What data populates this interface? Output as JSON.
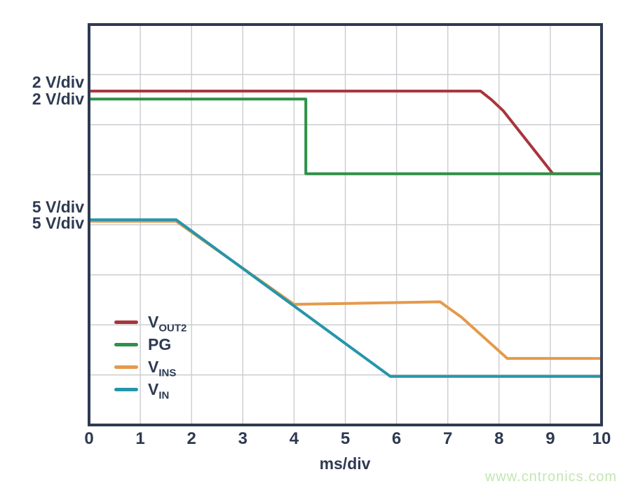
{
  "axis": {
    "x_label": "ms/div",
    "x_ticks": [
      "0",
      "1",
      "2",
      "3",
      "4",
      "5",
      "6",
      "7",
      "8",
      "9",
      "10"
    ]
  },
  "scale_labels": [
    {
      "text": "2 V/div",
      "series": "VOUT2"
    },
    {
      "text": "2 V/div",
      "series": "PG"
    },
    {
      "text": "5 V/div",
      "series": "VINS"
    },
    {
      "text": "5 V/div",
      "series": "VIN"
    }
  ],
  "legend": {
    "items": [
      {
        "label_main": "V",
        "label_sub": "OUT2",
        "color": "#a8353c"
      },
      {
        "label_main": "PG",
        "label_sub": "",
        "color": "#2e9147"
      },
      {
        "label_main": "V",
        "label_sub": "INS",
        "color": "#e49a4b"
      },
      {
        "label_main": "V",
        "label_sub": "IN",
        "color": "#2795ab"
      }
    ]
  },
  "watermark": {
    "text": "www.cntronics.com",
    "color": "#c3e6b2"
  },
  "colors": {
    "frame": "#2e3a52",
    "grid": "#cbccd0",
    "text": "#2e3a52",
    "background": "#ffffff"
  },
  "chart_data": {
    "type": "line",
    "title": "",
    "xlabel": "ms/div",
    "x_range": [
      0,
      10
    ],
    "x_divisions": 10,
    "y_divisions": 8,
    "grid": true,
    "legend_position": "inside-lower-left",
    "series": [
      {
        "name": "VOUT2",
        "scale": "2 V/div",
        "color": "#a8353c",
        "points": [
          [
            0,
            6.67
          ],
          [
            7.64,
            6.67
          ],
          [
            7.85,
            6.5
          ],
          [
            8.08,
            6.28
          ],
          [
            9.05,
            5.02
          ],
          [
            10,
            5.02
          ]
        ]
      },
      {
        "name": "PG",
        "scale": "2 V/div",
        "color": "#2e9147",
        "points": [
          [
            0,
            6.51
          ],
          [
            4.23,
            6.51
          ],
          [
            4.23,
            5.02
          ],
          [
            10,
            5.02
          ]
        ]
      },
      {
        "name": "VINS",
        "scale": "5 V/div",
        "color": "#e49a4b",
        "points": [
          [
            0,
            4.07
          ],
          [
            1.7,
            4.07
          ],
          [
            4.0,
            2.41
          ],
          [
            6.85,
            2.46
          ],
          [
            7.27,
            2.15
          ],
          [
            8.16,
            1.33
          ],
          [
            10,
            1.33
          ]
        ]
      },
      {
        "name": "VIN",
        "scale": "5 V/div",
        "color": "#2795ab",
        "points": [
          [
            0,
            4.1
          ],
          [
            1.7,
            4.1
          ],
          [
            5.88,
            0.97
          ],
          [
            10,
            0.97
          ]
        ]
      }
    ]
  }
}
